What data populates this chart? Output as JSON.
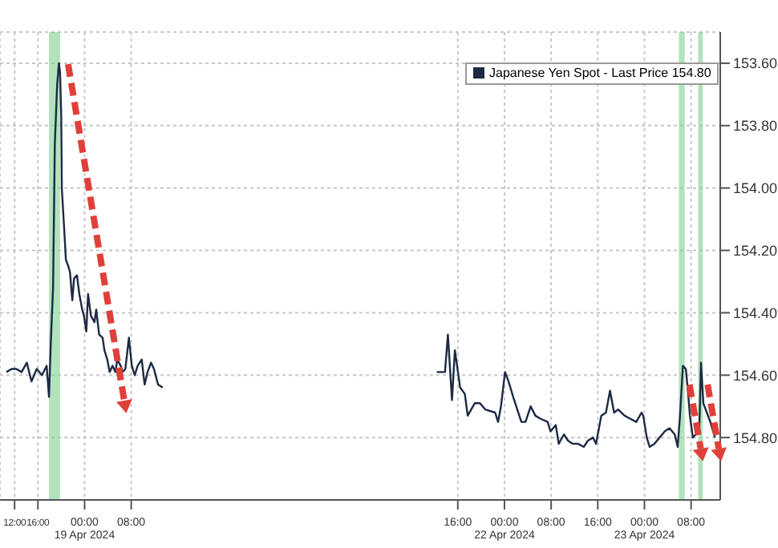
{
  "chart_data": {
    "type": "line",
    "legend": "top right",
    "grid": true,
    "marker": "none",
    "line_style": "solid",
    "x": [
      "2024-04-18T10:36",
      "2024-04-18T11:30",
      "2024-04-18T12:18",
      "2024-04-18T13:12",
      "2024-04-18T14:06",
      "2024-04-18T14:54",
      "2024-04-18T15:48",
      "2024-04-18T16:42",
      "2024-04-18T17:30",
      "2024-04-18T17:54",
      "2024-04-18T18:12",
      "2024-04-18T18:36",
      "2024-04-18T18:54",
      "2024-04-18T19:18",
      "2024-04-18T19:36",
      "2024-04-18T19:48",
      "2024-04-18T20:00",
      "2024-04-18T20:06",
      "2024-04-18T20:30",
      "2024-04-18T20:48",
      "2024-04-18T21:12",
      "2024-04-18T21:30",
      "2024-04-18T21:54",
      "2024-04-18T22:12",
      "2024-04-18T22:42",
      "2024-04-18T23:06",
      "2024-04-18T23:36",
      "2024-04-18T23:54",
      "2024-04-19T00:18",
      "2024-04-19T00:36",
      "2024-04-19T01:06",
      "2024-04-19T01:42",
      "2024-04-19T02:00",
      "2024-04-19T02:30",
      "2024-04-19T03:06",
      "2024-04-19T03:24",
      "2024-04-19T03:54",
      "2024-04-19T04:18",
      "2024-04-19T04:48",
      "2024-04-19T05:18",
      "2024-04-19T05:36",
      "2024-04-19T06:12",
      "2024-04-19T06:30",
      "2024-04-19T07:00",
      "2024-04-19T07:36",
      "2024-04-19T08:06",
      "2024-04-19T08:36",
      "2024-04-19T09:06",
      "2024-04-19T09:48",
      "2024-04-19T10:18",
      "2024-04-19T10:48",
      "2024-04-19T11:24",
      "2024-04-19T11:54",
      "2024-04-19T12:36",
      "2024-04-19T13:24",
      "2024-04-20T12:00",
      "2024-04-21T12:24",
      "2024-04-21T13:48",
      "2024-04-21T14:18",
      "2024-04-21T15:00",
      "2024-04-21T15:30",
      "2024-04-21T16:24",
      "2024-04-21T17:12",
      "2024-04-21T17:42",
      "2024-04-21T18:54",
      "2024-04-21T19:48",
      "2024-04-21T20:42",
      "2024-04-21T22:24",
      "2024-04-21T22:54",
      "2024-04-21T23:24",
      "2024-04-22T00:06",
      "2024-04-22T00:42",
      "2024-04-22T01:30",
      "2024-04-22T02:12",
      "2024-04-22T02:54",
      "2024-04-22T03:36",
      "2024-04-22T04:30",
      "2024-04-22T05:18",
      "2024-04-22T06:12",
      "2024-04-22T07:24",
      "2024-04-22T07:54",
      "2024-04-22T08:48",
      "2024-04-22T09:18",
      "2024-04-22T10:12",
      "2024-04-22T10:54",
      "2024-04-22T11:42",
      "2024-04-22T12:36",
      "2024-04-22T13:36",
      "2024-04-22T14:18",
      "2024-04-22T15:12",
      "2024-04-22T15:42",
      "2024-04-22T16:36",
      "2024-04-22T17:24",
      "2024-04-22T18:06",
      "2024-04-22T18:48",
      "2024-04-22T19:30",
      "2024-04-22T20:36",
      "2024-04-22T21:36",
      "2024-04-22T22:36",
      "2024-04-22T23:30",
      "2024-04-22T23:48",
      "2024-04-23T00:24",
      "2024-04-23T00:54",
      "2024-04-23T01:42",
      "2024-04-23T02:36",
      "2024-04-23T03:30",
      "2024-04-23T04:18",
      "2024-04-23T05:12",
      "2024-04-23T05:42",
      "2024-04-23T06:06",
      "2024-04-23T06:36",
      "2024-04-23T07:06",
      "2024-04-23T07:30",
      "2024-04-23T07:48",
      "2024-04-23T08:18",
      "2024-04-23T08:48",
      "2024-04-23T09:24",
      "2024-04-23T09:42",
      "2024-04-23T10:06",
      "2024-04-23T10:42",
      "2024-04-23T11:18",
      "2024-04-23T12:06"
    ],
    "series": [
      {
        "name": "Japanese Yen Spot - Last Price 154.80",
        "color": "#1c2a44",
        "values": [
          154.59,
          154.58,
          154.58,
          154.59,
          154.56,
          154.62,
          154.58,
          154.6,
          154.57,
          154.67,
          154.5,
          154.32,
          153.86,
          153.67,
          153.6,
          153.63,
          153.77,
          154.0,
          154.13,
          154.23,
          154.25,
          154.27,
          154.36,
          154.29,
          154.28,
          154.34,
          154.39,
          154.41,
          154.46,
          154.34,
          154.41,
          154.43,
          154.39,
          154.47,
          154.48,
          154.52,
          154.55,
          154.59,
          154.57,
          154.59,
          154.55,
          154.57,
          154.59,
          154.58,
          154.48,
          154.57,
          154.6,
          154.57,
          154.55,
          154.63,
          154.59,
          154.56,
          154.58,
          154.63,
          154.64,
          null,
          154.59,
          154.59,
          154.47,
          154.68,
          154.52,
          154.64,
          154.66,
          154.73,
          154.69,
          154.69,
          154.71,
          154.72,
          154.75,
          154.7,
          154.59,
          154.62,
          154.67,
          154.71,
          154.75,
          154.75,
          154.7,
          154.73,
          154.74,
          154.75,
          154.78,
          154.76,
          154.82,
          154.79,
          154.81,
          154.82,
          154.82,
          154.83,
          154.81,
          154.8,
          154.82,
          154.73,
          154.72,
          154.65,
          154.72,
          154.71,
          154.73,
          154.74,
          154.75,
          154.72,
          154.73,
          154.8,
          154.83,
          154.82,
          154.8,
          154.78,
          154.77,
          154.79,
          154.83,
          154.73,
          154.57,
          154.58,
          154.66,
          154.73,
          154.8,
          154.79,
          154.78,
          154.56,
          154.69,
          154.72,
          154.75,
          154.8
        ]
      }
    ],
    "xlim": [
      "2024-04-18T09:30",
      "2024-04-23T13:00"
    ],
    "xticks": [
      {
        "value": "2024-04-18T12:00",
        "label": "12:00"
      },
      {
        "value": "2024-04-18T16:00",
        "label": "16:00"
      },
      {
        "value": "2024-04-19T00:00",
        "label": "00:00"
      },
      {
        "value": "2024-04-19T08:00",
        "label": "08:00"
      },
      {
        "value": "2024-04-21T16:00",
        "label": "16:00"
      },
      {
        "value": "2024-04-22T00:00",
        "label": "00:00"
      },
      {
        "value": "2024-04-22T08:00",
        "label": "08:00"
      },
      {
        "value": "2024-04-22T16:00",
        "label": "16:00"
      },
      {
        "value": "2024-04-23T00:00",
        "label": "00:00"
      },
      {
        "value": "2024-04-23T08:00",
        "label": "08:00"
      }
    ],
    "annotations": [
      "19 Apr 2024",
      "22 Apr 2024",
      "23 Apr 2024"
    ],
    "ylim": [
      155.0,
      153.5
    ],
    "yticks": [
      {
        "value": 153.6,
        "label": "153.60"
      },
      {
        "value": 153.8,
        "label": "153.80"
      },
      {
        "value": 154.0,
        "label": "154.00"
      },
      {
        "value": 154.2,
        "label": "154.20"
      },
      {
        "value": 154.4,
        "label": "154.40"
      },
      {
        "value": 154.6,
        "label": "154.60"
      },
      {
        "value": 154.8,
        "label": "154.80"
      }
    ],
    "bands": [
      {
        "axis": "x",
        "from": "2024-04-18T17:54",
        "to": "2024-04-18T19:48",
        "color": "#7fd08f"
      },
      {
        "axis": "x",
        "from": "2024-04-23T05:54",
        "to": "2024-04-23T06:54",
        "color": "#7fd08f"
      },
      {
        "axis": "x",
        "from": "2024-04-23T09:12",
        "to": "2024-04-23T10:00",
        "color": "#7fd08f"
      }
    ]
  }
}
